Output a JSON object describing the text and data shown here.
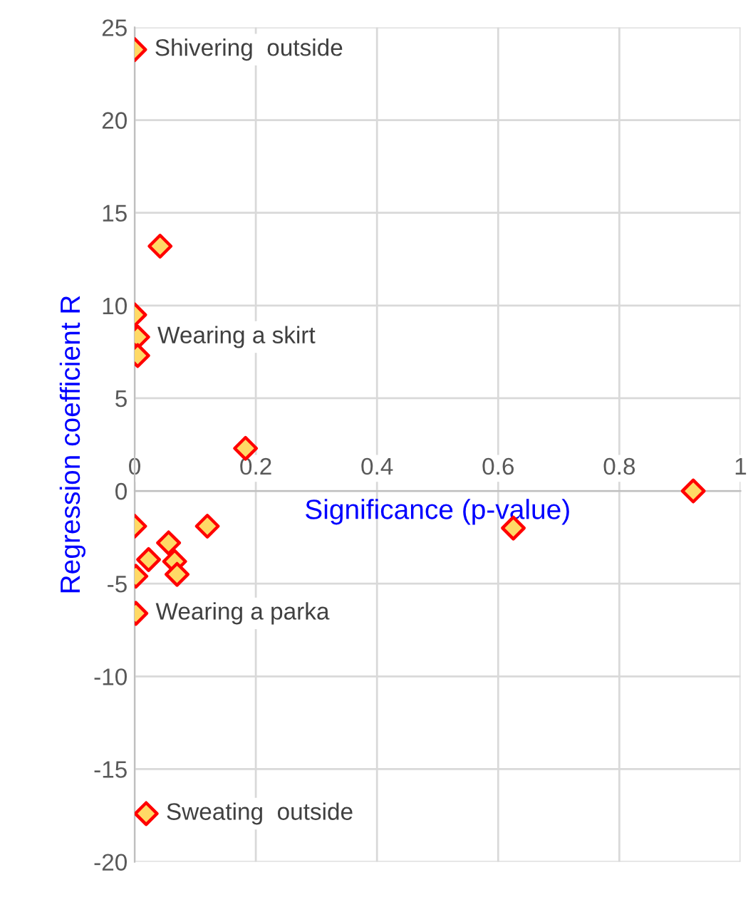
{
  "chart_data": {
    "type": "scatter",
    "xlabel": "Significance (p-value)",
    "ylabel": "Regression coefficient R",
    "x": [
      0,
      0.042,
      0,
      0.005,
      0.005,
      0.183,
      0,
      0.12,
      0.056,
      0.023,
      0.066,
      0.07,
      0.002,
      0.002,
      0.019,
      0.625,
      0.922
    ],
    "series": [
      {
        "color": "#ffd966",
        "values": [
          23.8,
          13.2,
          9.5,
          8.3,
          7.3,
          2.3,
          -1.9,
          -1.9,
          -2.8,
          -3.7,
          -3.8,
          -4.5,
          -4.6,
          -6.6,
          -17.4,
          -2.0,
          0.0
        ]
      }
    ],
    "marker": "diamond",
    "grid": true,
    "legend": false,
    "xlim": [
      0,
      1
    ],
    "xticks": [
      0,
      0.2,
      0.4,
      0.6,
      0.8,
      1
    ],
    "ylim": [
      -20,
      25
    ],
    "yticks": [
      {
        "value": -20,
        "label": "-20"
      },
      {
        "value": -15,
        "label": "-15"
      },
      {
        "value": -10,
        "label": "-10"
      },
      {
        "value": -5,
        "label": "-5"
      },
      0,
      5,
      10,
      15,
      20,
      25
    ],
    "annotations": [
      {
        "text": "Shivering  outside",
        "x": 0,
        "y": 23.8
      },
      {
        "text": "Wearing a skirt",
        "x": 0.005,
        "y": 8.3
      },
      {
        "text": "Wearing a parka",
        "x": 0.002,
        "y": -6.6
      },
      {
        "text": "Sweating  outside",
        "x": 0.019,
        "y": -17.4
      }
    ]
  }
}
